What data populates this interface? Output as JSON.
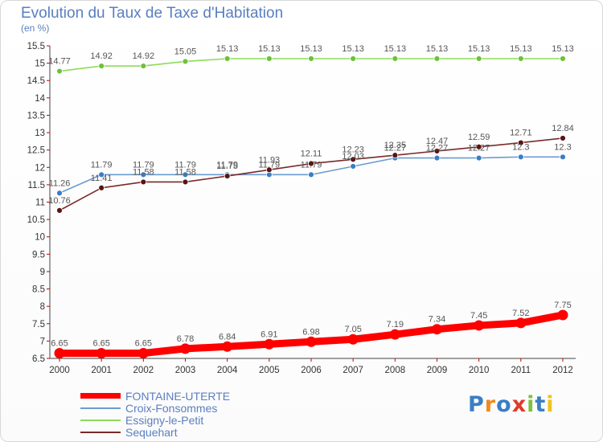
{
  "page": {
    "title": "Evolution du Taux de Taxe d'Habitation",
    "unit": "(en %)",
    "logo": "Proxiti"
  },
  "chart_data": {
    "type": "line",
    "x": [
      "2000",
      "2001",
      "2002",
      "2003",
      "2004",
      "2005",
      "2006",
      "2007",
      "2008",
      "2009",
      "2010",
      "2011",
      "2012"
    ],
    "ylim": [
      6.5,
      15.5
    ],
    "yticks": [
      "6.5",
      "7",
      "7.5",
      "8",
      "8.5",
      "9",
      "9.5",
      "10",
      "10.5",
      "11",
      "11.5",
      "12",
      "12.5",
      "13",
      "13.5",
      "14",
      "14.5",
      "15",
      "15.5"
    ],
    "grid": false,
    "legend_position": "bottom-left",
    "series": [
      {
        "name": "FONTAINE-UTERTE",
        "color": "#ff0000",
        "marker": "#ff0000",
        "values": [
          6.65,
          6.65,
          6.65,
          6.78,
          6.84,
          6.91,
          6.98,
          7.05,
          7.19,
          7.34,
          7.45,
          7.52,
          7.75
        ],
        "labels": [
          "6.65",
          "6.65",
          "6.65",
          "6.78",
          "6.84",
          "6.91",
          "6.98",
          "7.05",
          "7.19",
          "7.34",
          "7.45",
          "7.52",
          "7.75"
        ]
      },
      {
        "name": "Croix-Fonsommes",
        "color": "#6a9cd0",
        "marker": "#3a7ec4",
        "values": [
          11.26,
          11.79,
          11.79,
          11.79,
          11.79,
          11.79,
          11.79,
          12.03,
          12.27,
          12.27,
          12.27,
          12.3,
          12.3
        ],
        "labels": [
          "11.26",
          "11.79",
          "11.79",
          "11.79",
          "11.79",
          "11.79",
          "11.79",
          "12.03",
          "12.27",
          "12.27",
          "12.27",
          "12.3",
          "12.3"
        ]
      },
      {
        "name": "Essigny-le-Petit",
        "color": "#8edb5a",
        "marker": "#6cc23a",
        "values": [
          14.77,
          14.92,
          14.92,
          15.05,
          15.13,
          15.13,
          15.13,
          15.13,
          15.13,
          15.13,
          15.13,
          15.13,
          15.13
        ],
        "labels": [
          "14.77",
          "14.92",
          "14.92",
          "15.05",
          "15.13",
          "15.13",
          "15.13",
          "15.13",
          "15.13",
          "15.13",
          "15.13",
          "15.13",
          "15.13"
        ]
      },
      {
        "name": "Sequehart",
        "color": "#7a2a2a",
        "marker": "#5a1414",
        "values": [
          10.76,
          11.41,
          11.58,
          11.58,
          11.75,
          11.93,
          12.11,
          12.23,
          12.35,
          12.47,
          12.59,
          12.71,
          12.84
        ],
        "labels": [
          "10.76",
          "11.41",
          "11.58",
          "11.58",
          "11.75",
          "11.93",
          "12.11",
          "12.23",
          "12.35",
          "12.47",
          "12.59",
          "12.71",
          "12.84"
        ]
      }
    ]
  }
}
